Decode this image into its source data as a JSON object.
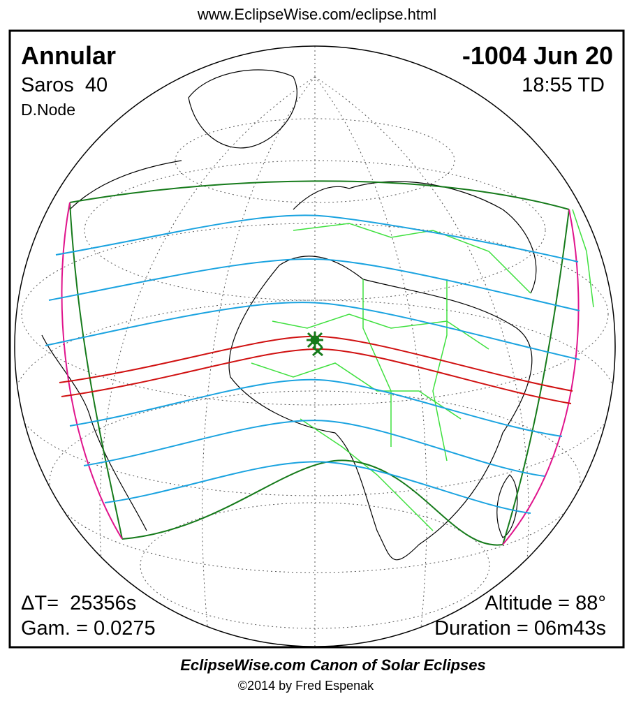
{
  "header": {
    "url": "www.EclipseWise.com/eclipse.html"
  },
  "eclipse": {
    "type": "Annular",
    "date": "-1004 Jun 20",
    "saros": "Saros  40",
    "time": "18:55 TD",
    "node": "D.Node",
    "delta_t": "ΔT=  25356s",
    "gamma": "Gam. = 0.0275",
    "altitude": "Altitude = 88°",
    "duration": "Duration = 06m43s"
  },
  "footer": {
    "title": "EclipseWise.com Canon of Solar Eclipses",
    "copyright": "©2014 by Fred Espenak"
  }
}
